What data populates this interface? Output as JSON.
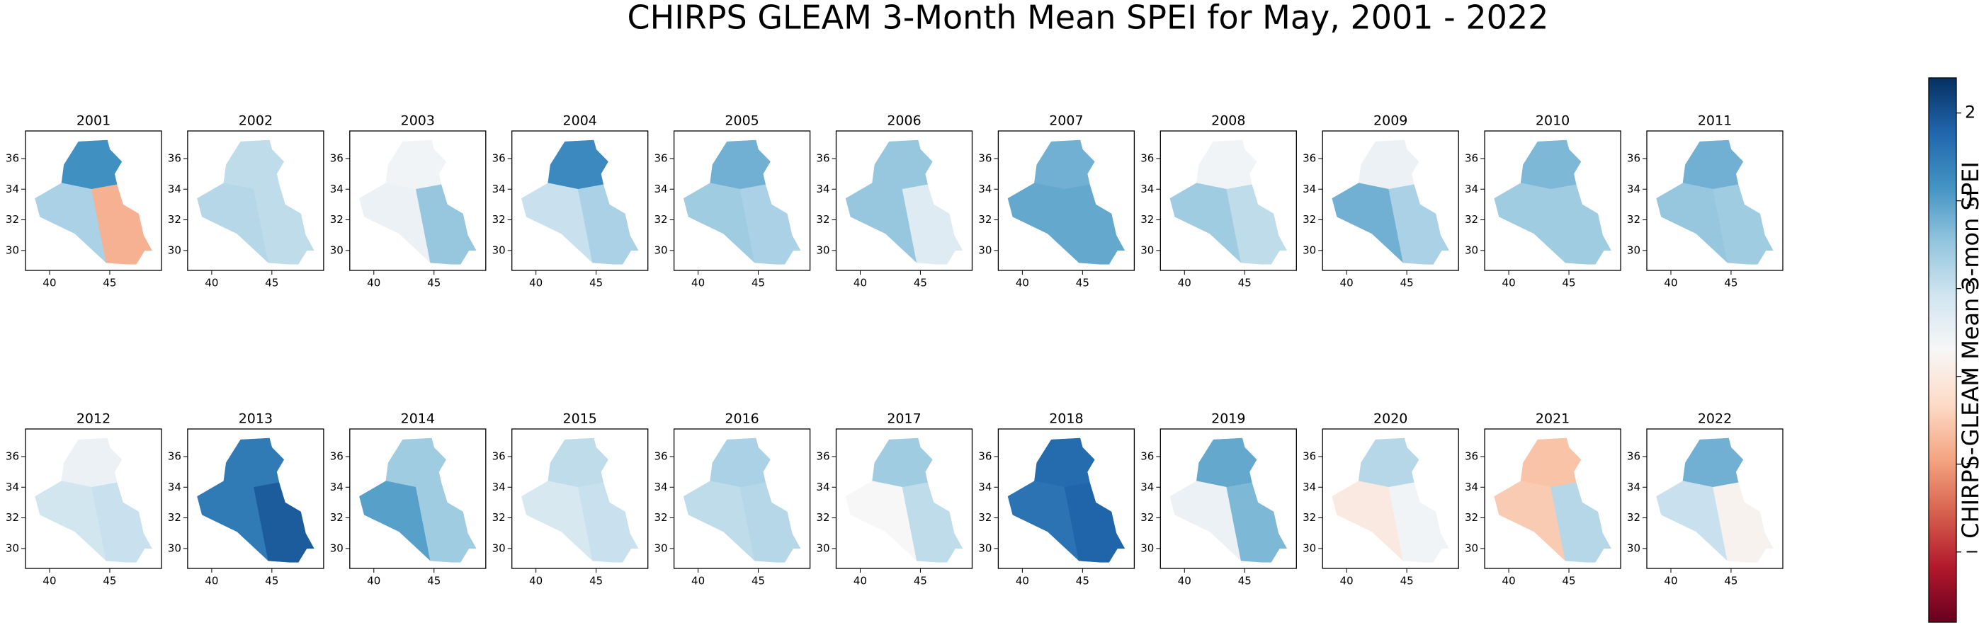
{
  "chart_data": {
    "type": "map",
    "title": "CHIRPS GLEAM 3-Month Mean SPEI for May, 2001 - 2022",
    "xlim": [
      38.0,
      49.3
    ],
    "ylim": [
      28.7,
      37.8
    ],
    "xticks": [
      40,
      45
    ],
    "yticks": [
      30,
      32,
      34,
      36
    ],
    "panels": [
      {
        "title": "2001",
        "values": [
          1.2,
          0.3,
          -1.8
        ]
      },
      {
        "title": "2002",
        "values": [
          0.1,
          0.2,
          0.1
        ]
      },
      {
        "title": "2003",
        "values": [
          -0.6,
          -0.5,
          0.5
        ]
      },
      {
        "title": "2004",
        "values": [
          1.3,
          0.0,
          0.3
        ]
      },
      {
        "title": "2005",
        "values": [
          0.8,
          0.4,
          0.3
        ]
      },
      {
        "title": "2006",
        "values": [
          0.5,
          0.5,
          -0.3
        ]
      },
      {
        "title": "2007",
        "values": [
          0.8,
          0.9,
          0.9
        ]
      },
      {
        "title": "2008",
        "values": [
          -0.6,
          0.4,
          0.1
        ]
      },
      {
        "title": "2009",
        "values": [
          -0.5,
          0.8,
          0.3
        ]
      },
      {
        "title": "2010",
        "values": [
          0.7,
          0.4,
          0.4
        ]
      },
      {
        "title": "2011",
        "values": [
          0.8,
          0.5,
          0.4
        ]
      },
      {
        "title": "2012",
        "values": [
          -0.5,
          -0.1,
          0.0
        ]
      },
      {
        "title": "2013",
        "values": [
          1.5,
          1.5,
          1.9
        ]
      },
      {
        "title": "2014",
        "values": [
          0.4,
          1.0,
          0.4
        ]
      },
      {
        "title": "2015",
        "values": [
          0.1,
          -0.2,
          0.0
        ]
      },
      {
        "title": "2016",
        "values": [
          0.3,
          0.1,
          0.2
        ]
      },
      {
        "title": "2017",
        "values": [
          0.4,
          -0.7,
          0.1
        ]
      },
      {
        "title": "2018",
        "values": [
          1.7,
          1.6,
          1.8
        ]
      },
      {
        "title": "2019",
        "values": [
          0.9,
          -0.5,
          0.7
        ]
      },
      {
        "title": "2020",
        "values": [
          0.2,
          -1.0,
          -0.6
        ]
      },
      {
        "title": "2021",
        "values": [
          -1.6,
          -1.5,
          0.2
        ]
      },
      {
        "title": "2022",
        "values": [
          0.8,
          0.0,
          -0.8
        ]
      }
    ],
    "clim": [
      -3.8,
      2.4
    ],
    "cticks": [
      {
        "value": -3,
        "label": "−3"
      },
      {
        "value": -2,
        "label": "−2"
      },
      {
        "value": -1,
        "label": "−1"
      },
      0,
      1,
      2
    ],
    "colorbar_label": "CHIRPS-GLEAM Mean 3-mon SPEI",
    "colors": [
      "#67001f",
      "#b2182b",
      "#d6604d",
      "#f4a582",
      "#fddbc7",
      "#f7f7f7",
      "#d1e5f0",
      "#92c5de",
      "#4393c3",
      "#2166ac",
      "#053061"
    ]
  }
}
